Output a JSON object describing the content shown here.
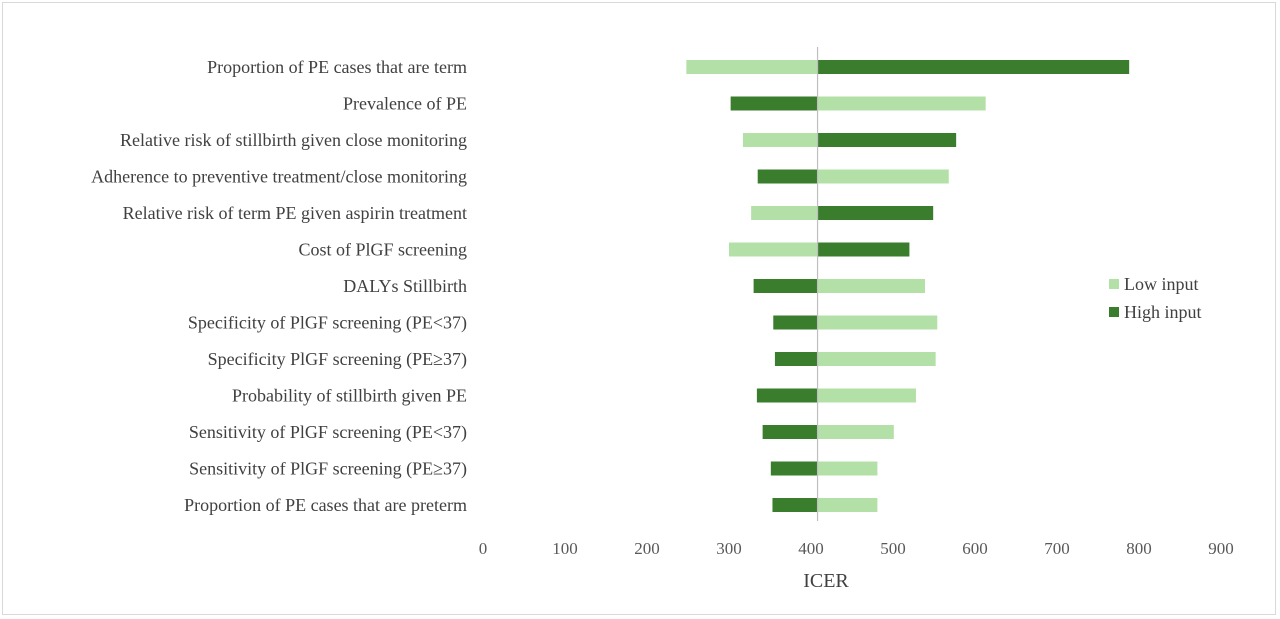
{
  "chart_data": {
    "type": "bar",
    "subtype": "tornado",
    "title": "",
    "xlabel": "ICER",
    "ylabel": "",
    "xlim": [
      0,
      900
    ],
    "xticks": [
      0,
      100,
      200,
      300,
      400,
      500,
      600,
      700,
      800,
      900
    ],
    "base_value": 408,
    "grid": false,
    "legend_position": "right",
    "categories": [
      "Proportion of PE cases that are term",
      "Prevalence of PE",
      "Relative risk of stillbirth given close monitoring",
      "Adherence to preventive treatment/close monitoring",
      "Relative risk of term PE given aspirin treatment",
      "Cost of PlGF screening",
      "DALYs Stillbirth",
      "Specificity of PlGF screening (PE<37)",
      "Specificity PlGF screening (PE≥37)",
      "Probability of stillbirth given PE",
      "Sensitivity of PlGF screening (PE<37)",
      "Sensitivity of PlGF screening (PE≥37)",
      "Proportion of PE cases that are preterm"
    ],
    "series": [
      {
        "name": "Low input",
        "color": "#b3e0a6",
        "values": [
          248,
          613,
          317,
          568,
          327,
          300,
          539,
          554,
          552,
          528,
          501,
          481,
          481
        ]
      },
      {
        "name": "High input",
        "color": "#3a7d2c",
        "values": [
          788,
          302,
          577,
          335,
          549,
          520,
          330,
          354,
          356,
          334,
          341,
          351,
          353
        ]
      }
    ]
  }
}
